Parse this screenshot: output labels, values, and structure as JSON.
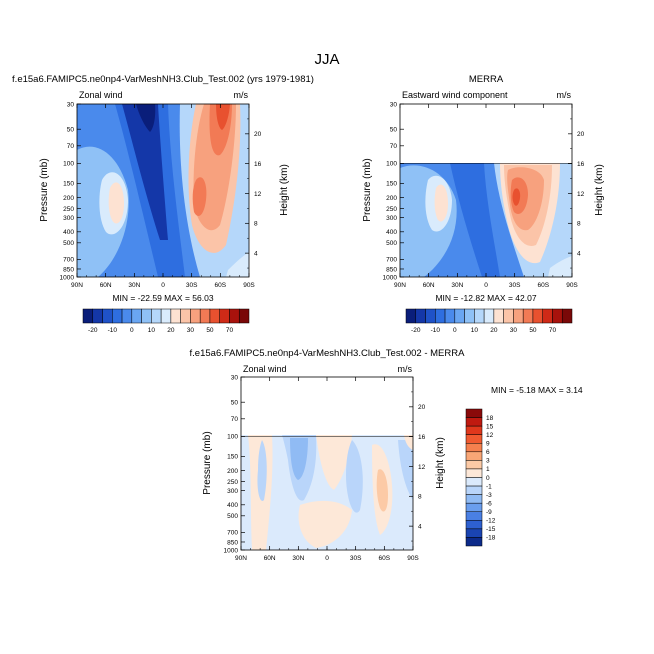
{
  "figure": {
    "title": "JJA"
  },
  "chart_data": [
    {
      "type": "heatmap",
      "id": "model",
      "title": "f.e15a6.FAMIPC5.ne0np4-VarMeshNH3.Club_Test.002 (yrs 1979-1981)",
      "left_label": "Zonal wind",
      "right_label": "m/s",
      "ylabel": "Pressure (mb)",
      "y2label": "Height (km)",
      "x_ticks": [
        "90N",
        "60N",
        "30N",
        "0",
        "30S",
        "60S",
        "90S"
      ],
      "xlim": [
        90,
        -90
      ],
      "ylim": [
        1000,
        30
      ],
      "y_ticks": [
        30,
        50,
        70,
        100,
        150,
        200,
        250,
        300,
        400,
        500,
        700,
        850,
        1000
      ],
      "y2_ticks": [
        20,
        16,
        12,
        8,
        4
      ],
      "data_top_pressure": 30,
      "min_max": "MIN = -22.59  MAX = 56.03",
      "min": -22.59,
      "max": 56.03,
      "colorbar_labels": [
        "-20",
        "-10",
        "0",
        "10",
        "20",
        "30",
        "50",
        "70"
      ]
    },
    {
      "type": "heatmap",
      "id": "merra",
      "title": "MERRA",
      "left_label": "Eastward wind component",
      "right_label": "m/s",
      "ylabel": "Pressure (mb)",
      "y2label": "Height (km)",
      "x_ticks": [
        "90N",
        "60N",
        "30N",
        "0",
        "30S",
        "60S",
        "90S"
      ],
      "xlim": [
        90,
        -90
      ],
      "ylim": [
        1000,
        30
      ],
      "y_ticks": [
        30,
        50,
        70,
        100,
        150,
        200,
        250,
        300,
        400,
        500,
        700,
        850,
        1000
      ],
      "y2_ticks": [
        20,
        16,
        12,
        8,
        4
      ],
      "data_top_pressure": 100,
      "min_max": "MIN = -12.82  MAX =  42.07",
      "min": -12.82,
      "max": 42.07,
      "colorbar_labels": [
        "-20",
        "-10",
        "0",
        "10",
        "20",
        "30",
        "50",
        "70"
      ]
    },
    {
      "type": "heatmap",
      "id": "diff",
      "title": "f.e15a6.FAMIPC5.ne0np4-VarMeshNH3.Club_Test.002 - MERRA",
      "left_label": "Zonal wind",
      "right_label": "m/s",
      "ylabel": "Pressure (mb)",
      "y2label": "Height (km)",
      "x_ticks": [
        "90N",
        "60N",
        "30N",
        "0",
        "30S",
        "60S",
        "90S"
      ],
      "xlim": [
        90,
        -90
      ],
      "ylim": [
        1000,
        30
      ],
      "y_ticks": [
        30,
        50,
        70,
        100,
        150,
        200,
        250,
        300,
        400,
        500,
        700,
        850,
        1000
      ],
      "y2_ticks": [
        20,
        16,
        12,
        8,
        4
      ],
      "data_top_pressure": 100,
      "min_max": "MIN = -5.18  MAX =  3.14",
      "min": -5.18,
      "max": 3.14,
      "colorbar_labels": [
        "18",
        "15",
        "12",
        "9",
        "6",
        "3",
        "1",
        "0",
        "-1",
        "-3",
        "-6",
        "-9",
        "-12",
        "-15",
        "-18"
      ]
    }
  ],
  "colors": {
    "abs_colorbar": [
      "#0a1e7a",
      "#1437a8",
      "#1f52c8",
      "#2e6ee0",
      "#4a8aec",
      "#6aa6f2",
      "#8fc1f6",
      "#b5d7fa",
      "#d9ebfc",
      "#fde2d2",
      "#fbc4a8",
      "#f7a17e",
      "#f27a55",
      "#e8512f",
      "#cf2a17",
      "#a8120c",
      "#7a0808"
    ],
    "diff_colorbar": [
      "#8a0a0a",
      "#c01a10",
      "#e0381c",
      "#f05a30",
      "#f5804e",
      "#f9a676",
      "#fccaa6",
      "#fde8d8",
      "#dbeafc",
      "#b9d5fa",
      "#90bbf4",
      "#6a9eee",
      "#4a80e4",
      "#2e60d0",
      "#1a44b2",
      "#0c2a8a"
    ]
  }
}
